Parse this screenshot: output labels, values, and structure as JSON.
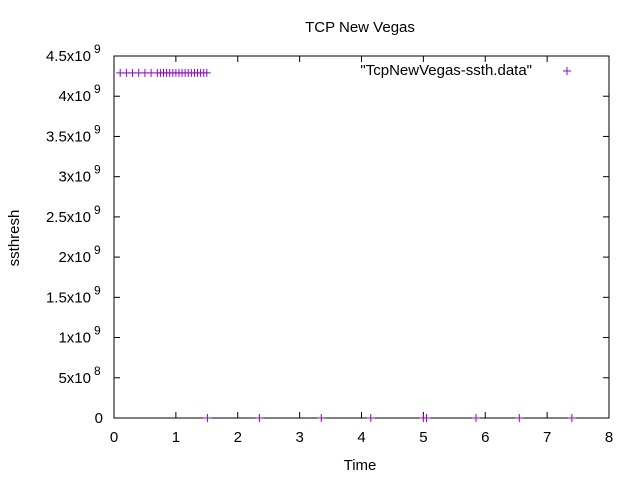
{
  "chart_data": {
    "type": "scatter",
    "title": "TCP New Vegas",
    "xlabel": "Time",
    "ylabel": "ssthresh",
    "xlim": [
      0,
      8
    ],
    "ylim": [
      0,
      4500000000
    ],
    "x_ticks": [
      {
        "value": 0,
        "label": "0"
      },
      {
        "value": 1,
        "label": "1"
      },
      {
        "value": 2,
        "label": "2"
      },
      {
        "value": 3,
        "label": "3"
      },
      {
        "value": 4,
        "label": "4"
      },
      {
        "value": 5,
        "label": "5"
      },
      {
        "value": 6,
        "label": "6"
      },
      {
        "value": 7,
        "label": "7"
      },
      {
        "value": 8,
        "label": "8"
      }
    ],
    "y_ticks": [
      {
        "value": 0,
        "mantissa": "0",
        "exp": ""
      },
      {
        "value": 500000000,
        "mantissa": "5x10",
        "exp": "8"
      },
      {
        "value": 1000000000,
        "mantissa": "1x10",
        "exp": "9"
      },
      {
        "value": 1500000000,
        "mantissa": "1.5x10",
        "exp": "9"
      },
      {
        "value": 2000000000,
        "mantissa": "2x10",
        "exp": "9"
      },
      {
        "value": 2500000000,
        "mantissa": "2.5x10",
        "exp": "9"
      },
      {
        "value": 3000000000,
        "mantissa": "3x10",
        "exp": "9"
      },
      {
        "value": 3500000000,
        "mantissa": "3.5x10",
        "exp": "9"
      },
      {
        "value": 4000000000,
        "mantissa": "4x10",
        "exp": "9"
      },
      {
        "value": 4500000000,
        "mantissa": "4.5x10",
        "exp": "9"
      }
    ],
    "grid": false,
    "legend_position": "top-right",
    "series": [
      {
        "name": "\"TcpNewVegas-ssth.data\"",
        "color": "#9400d3",
        "marker": "plus",
        "x": [
          0.1,
          0.2,
          0.3,
          0.4,
          0.5,
          0.6,
          0.7,
          0.75,
          0.8,
          0.85,
          0.9,
          0.95,
          1.0,
          1.05,
          1.1,
          1.15,
          1.2,
          1.25,
          1.3,
          1.35,
          1.4,
          1.45,
          1.5,
          1.51,
          2.35,
          3.35,
          4.15,
          5.0,
          5.05,
          5.85,
          6.55,
          7.4
        ],
        "y": [
          4290000000,
          4290000000,
          4290000000,
          4290000000,
          4290000000,
          4290000000,
          4290000000,
          4290000000,
          4290000000,
          4290000000,
          4290000000,
          4290000000,
          4290000000,
          4290000000,
          4290000000,
          4290000000,
          4290000000,
          4290000000,
          4290000000,
          4290000000,
          4290000000,
          4290000000,
          4290000000,
          0,
          0,
          0,
          0,
          0,
          0,
          0,
          0,
          0
        ]
      }
    ]
  }
}
